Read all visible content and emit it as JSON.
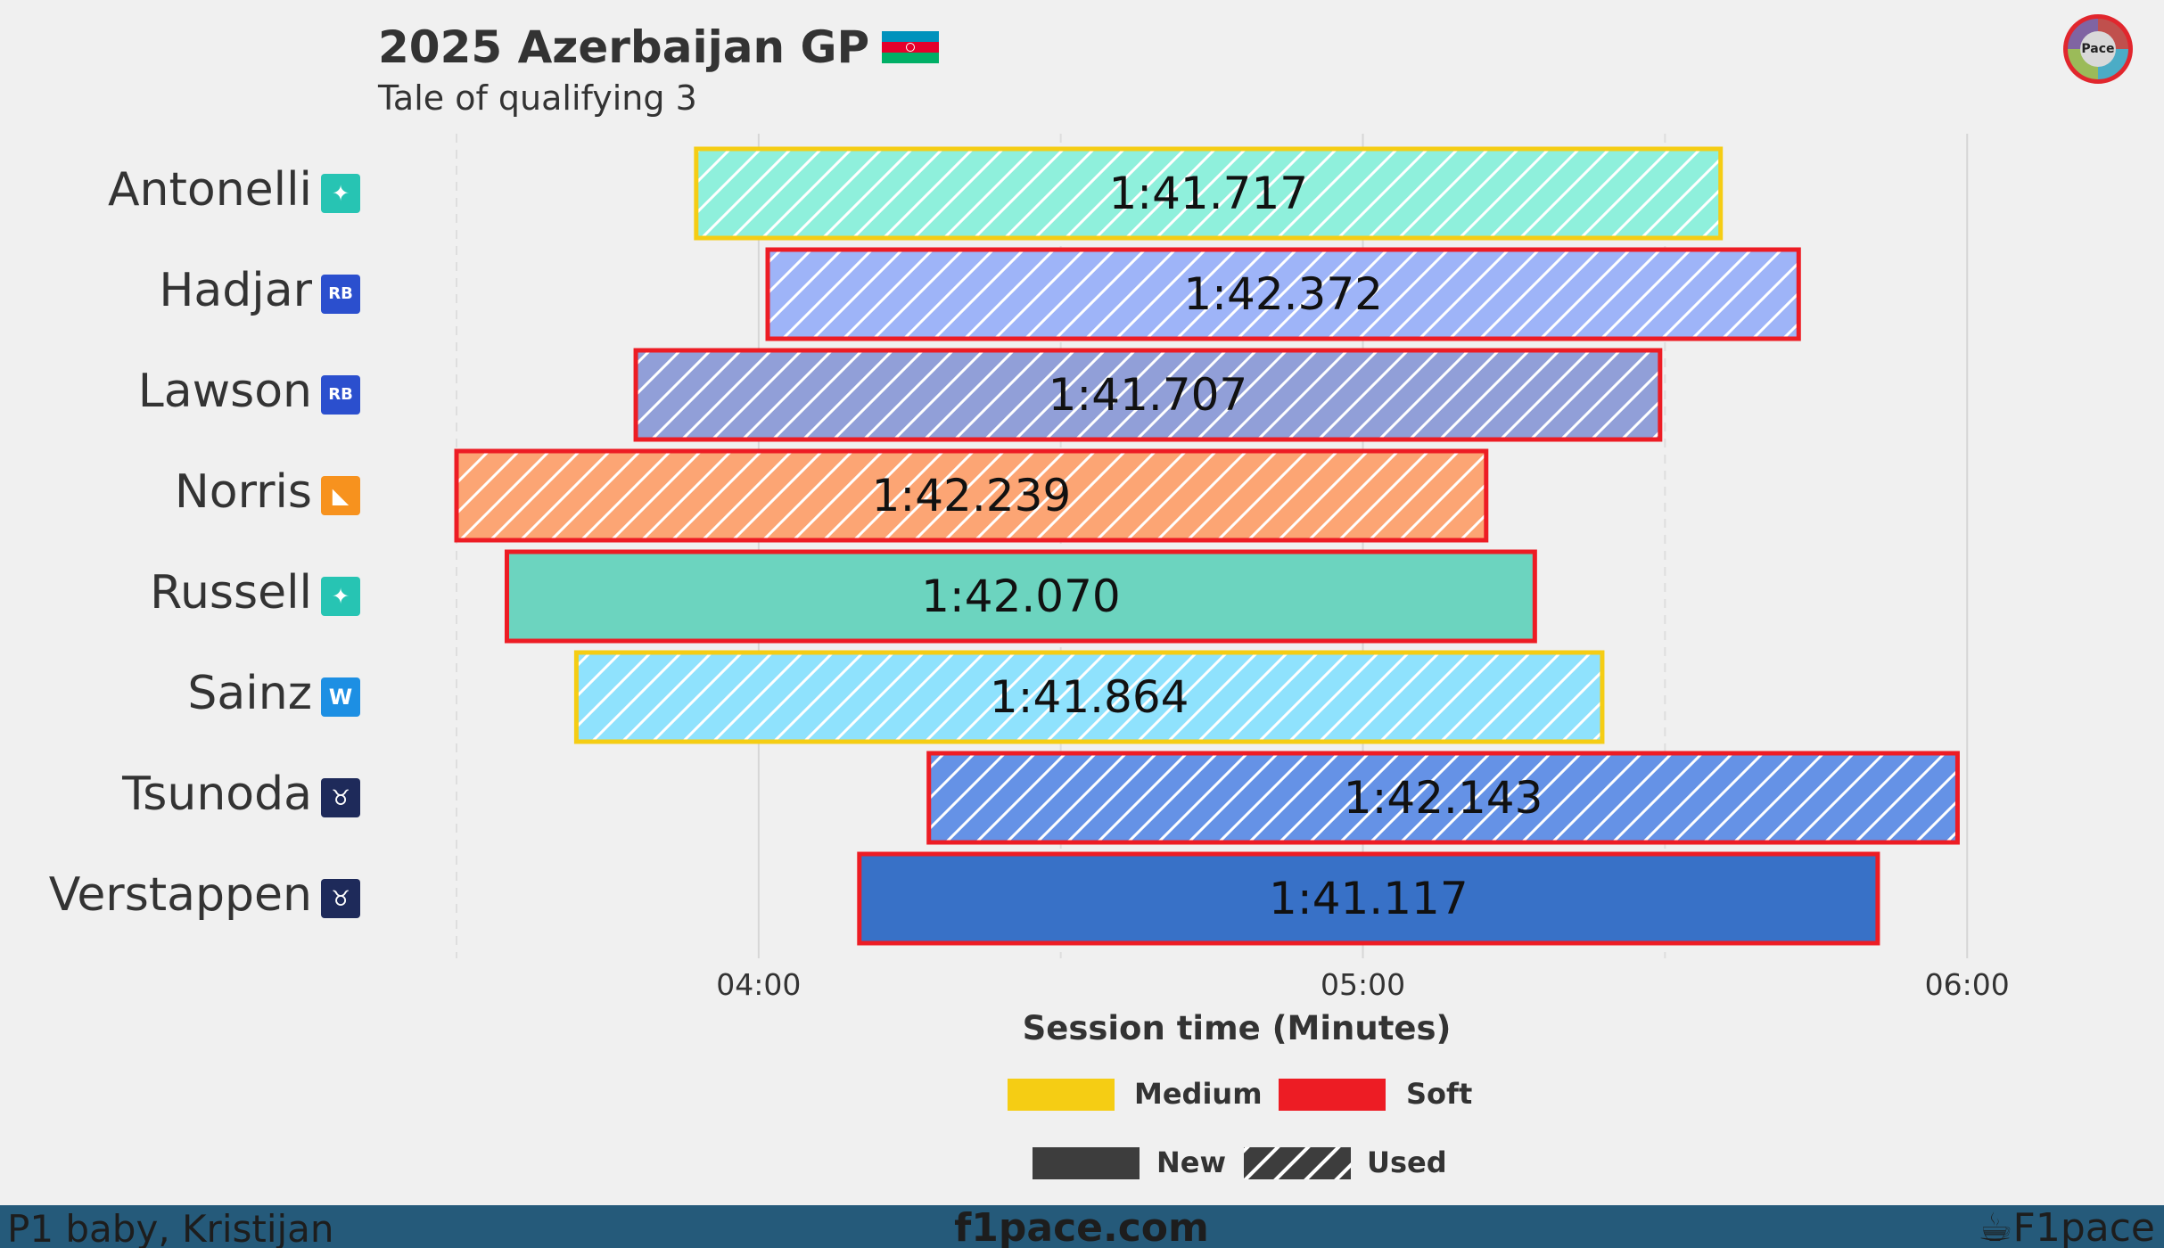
{
  "header": {
    "title": "2025 Azerbaijan GP",
    "subtitle": "Tale of qualifying 3",
    "flag_colors": [
      "#0092bc",
      "#e4002b",
      "#00af66"
    ]
  },
  "logo": {
    "icon": "f1pace-logo-icon",
    "text": "Pace"
  },
  "chart_data": {
    "type": "bar",
    "orientation": "horizontal",
    "xlabel": "Session time (Minutes)",
    "ylabel": "",
    "xlim_seconds": [
      210,
      366
    ],
    "xticks": [
      {
        "value": 240,
        "label": "04:00"
      },
      {
        "value": 300,
        "label": "05:00"
      },
      {
        "value": 360,
        "label": "06:00"
      }
    ],
    "minor_gridlines_seconds": [
      210,
      270,
      330
    ],
    "categories": [
      "Antonelli",
      "Hadjar",
      "Lawson",
      "Norris",
      "Russell",
      "Sainz",
      "Tsunoda",
      "Verstappen"
    ],
    "bars": [
      {
        "driver": "Antonelli",
        "team": "Mercedes",
        "team_icon": "mercedes-icon",
        "start": 233.8,
        "lap_time": "1:41.717",
        "duration": 101.717,
        "compound": "Medium",
        "tyre_state": "Used",
        "fill": "#8ff0dc"
      },
      {
        "driver": "Hadjar",
        "team": "Racing Bulls",
        "team_icon": "racing-bulls-icon",
        "start": 240.9,
        "lap_time": "1:42.372",
        "duration": 102.372,
        "compound": "Soft",
        "tyre_state": "Used",
        "fill": "#9eb4f8"
      },
      {
        "driver": "Lawson",
        "team": "Racing Bulls",
        "team_icon": "racing-bulls-icon",
        "start": 227.8,
        "lap_time": "1:41.707",
        "duration": 101.707,
        "compound": "Soft",
        "tyre_state": "Used",
        "fill": "#919fd8"
      },
      {
        "driver": "Norris",
        "team": "McLaren",
        "team_icon": "mclaren-icon",
        "start": 210.0,
        "lap_time": "1:42.239",
        "duration": 102.239,
        "compound": "Soft",
        "tyre_state": "Used",
        "fill": "#fca574"
      },
      {
        "driver": "Russell",
        "team": "Mercedes",
        "team_icon": "mercedes-icon",
        "start": 215.0,
        "lap_time": "1:42.070",
        "duration": 102.07,
        "compound": "Soft",
        "tyre_state": "New",
        "fill": "#6cd4bf"
      },
      {
        "driver": "Sainz",
        "team": "Williams",
        "team_icon": "williams-icon",
        "start": 221.9,
        "lap_time": "1:41.864",
        "duration": 101.864,
        "compound": "Medium",
        "tyre_state": "Used",
        "fill": "#8fe2fd"
      },
      {
        "driver": "Tsunoda",
        "team": "Red Bull Racing",
        "team_icon": "red-bull-icon",
        "start": 256.9,
        "lap_time": "1:42.143",
        "duration": 102.143,
        "compound": "Soft",
        "tyre_state": "Used",
        "fill": "#6592e6"
      },
      {
        "driver": "Verstappen",
        "team": "Red Bull Racing",
        "team_icon": "red-bull-icon",
        "start": 250.0,
        "lap_time": "1:41.117",
        "duration": 101.117,
        "compound": "Soft",
        "tyre_state": "New",
        "fill": "#3871c7"
      }
    ],
    "legend": {
      "compounds": [
        {
          "label": "Medium",
          "color": "#f5cd14"
        },
        {
          "label": "Soft",
          "color": "#ed1c24"
        }
      ],
      "states": [
        {
          "label": "New",
          "color": "#3d3d3d"
        },
        {
          "label": "Used",
          "color": "#3d3d3d"
        }
      ]
    },
    "team_colors": {
      "Mercedes": "#27c4b3",
      "Racing Bulls": "#2b4fce",
      "McLaren": "#f7921e",
      "Williams": "#1d8fe3",
      "Red Bull Racing": "#1e2a5a"
    },
    "team_icon_text": {
      "Mercedes": "✦",
      "Racing Bulls": "RB",
      "McLaren": "◣",
      "Williams": "W",
      "Red Bull Racing": "♉"
    }
  },
  "footer": {
    "left_text": "P1 baby, Kristijan",
    "center_text": "f1pace.com",
    "right_text": "F1pace",
    "right_icon": "cup-icon"
  }
}
